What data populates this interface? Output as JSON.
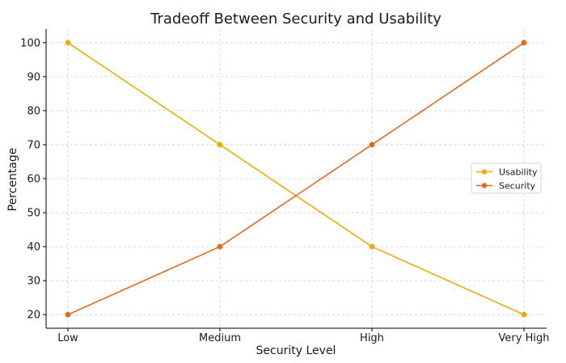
{
  "chart_data": {
    "type": "line",
    "title": "Tradeoff Between Security and Usability",
    "xlabel": "Security Level",
    "ylabel": "Percentage",
    "categories": [
      "Low",
      "Medium",
      "High",
      "Very High"
    ],
    "ylim": [
      16,
      104
    ],
    "yticks": [
      20,
      30,
      40,
      50,
      60,
      70,
      80,
      90,
      100
    ],
    "grid": true,
    "legend_position": "center-right",
    "series": [
      {
        "name": "Usability",
        "values": [
          100,
          70,
          40,
          20
        ],
        "color": "#f0ab0a"
      },
      {
        "name": "Security",
        "values": [
          20,
          40,
          70,
          100
        ],
        "color": "#e06a1f"
      }
    ]
  }
}
